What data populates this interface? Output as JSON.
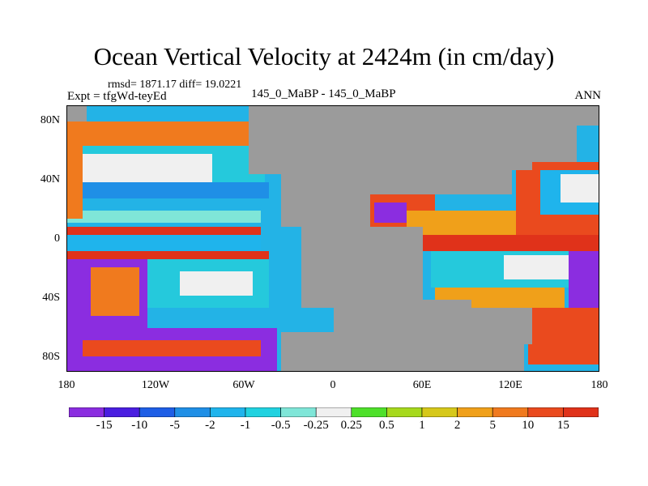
{
  "title": "Ocean Vertical Velocity at 2424m (in cm/day)",
  "stats": "rmsd= 1871.17 diff= 19.0221",
  "expt": "Expt = tfgWd-teyEd",
  "center_label": "145_0_MaBP - 145_0_MaBP",
  "season": "ANN",
  "map": {
    "lat_labels": [
      "80N",
      "40N",
      "0",
      "40S",
      "80S"
    ],
    "lon_labels": [
      "180",
      "120W",
      "60W",
      "0",
      "60E",
      "120E",
      "180"
    ],
    "land_color": "#9b9b9b"
  },
  "colorbar": {
    "levels": [
      "-15",
      "-10",
      "-5",
      "-2",
      "-1",
      "-0.5",
      "-0.25",
      "0.25",
      "0.5",
      "1",
      "2",
      "5",
      "10",
      "15"
    ],
    "colors": [
      "#8b2de0",
      "#4a1ee0",
      "#1e5ee6",
      "#1f8fe6",
      "#1fb4ec",
      "#20d2e0",
      "#7fe6d8",
      "#f0f0f0",
      "#4ee02a",
      "#a6d91c",
      "#d6c81a",
      "#f0a01a",
      "#f07a1e",
      "#ea4a1e",
      "#e0321a"
    ]
  }
}
